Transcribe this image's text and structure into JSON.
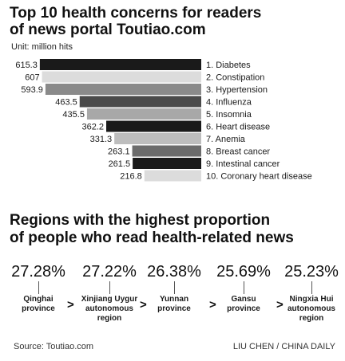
{
  "chart_data": [
    {
      "type": "bar",
      "title": "Top 10 health concerns for readers of news portal Toutiao.com",
      "title_lines": [
        "Top 10 health concerns for readers",
        "of news portal Toutiao.com"
      ],
      "unit": "Unit: million hits",
      "categories": [
        "1. Diabetes",
        "2. Constipation",
        "3. Hypertension",
        "4. Influenza",
        "5. Insomnia",
        "6. Heart disease",
        "7. Anemia",
        "8. Breast cancer",
        "9. Intestinal cancer",
        "10. Coronary heart disease"
      ],
      "values": [
        615.3,
        607,
        593.9,
        463.5,
        435.5,
        362.2,
        331.3,
        263.1,
        261.5,
        216.8
      ],
      "value_labels": [
        "615.3",
        "607",
        "593.9",
        "463.5",
        "435.5",
        "362.2",
        "331.3",
        "263.1",
        "261.5",
        "216.8"
      ],
      "colors": [
        "#1a1a1a",
        "#dcdcdc",
        "#8a8a8a",
        "#4a4a4a",
        "#a8a8a8",
        "#1a1a1a",
        "#bdbdbd",
        "#6b6b6b",
        "#1a1a1a",
        "#dcdcdc"
      ],
      "orientation": "horizontal-right-aligned",
      "legend": "none",
      "grid": false
    },
    {
      "type": "table",
      "title": "Regions with the highest proportion of people who read health-related news",
      "title_lines": [
        "Regions with the highest proportion",
        "of people who read health-related news"
      ],
      "regions": [
        "Qinghai\nprovince",
        "Xinjiang Uygur\nautonomous\nregion",
        "Yunnan\nprovince",
        "Gansu\nprovince",
        "Ningxia Hui\nautonomous\nregion"
      ],
      "values": [
        27.28,
        27.22,
        26.38,
        25.69,
        25.23
      ],
      "value_labels": [
        "27.28%",
        "27.22%",
        "26.38%",
        "25.69%",
        "25.23%"
      ],
      "separator": ">"
    }
  ],
  "footer": {
    "source": "Source: Toutiao.com",
    "credit": "LIU CHEN / CHINA DAILY"
  }
}
